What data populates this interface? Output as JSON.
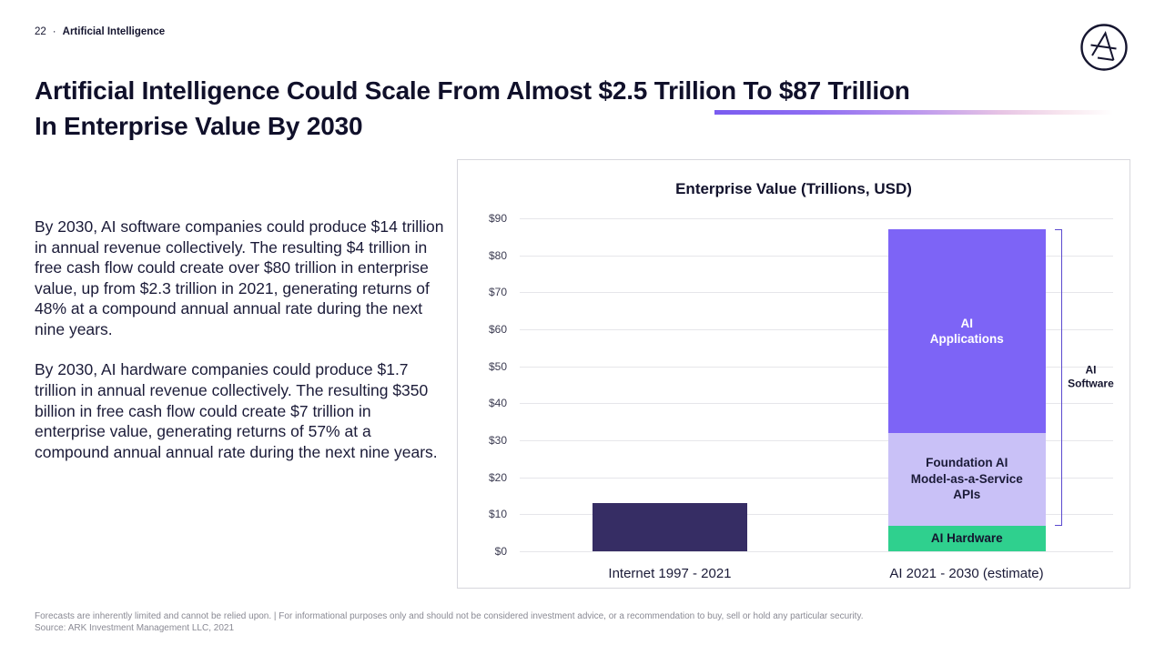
{
  "header": {
    "page_number": "22",
    "separator": "·",
    "section": "Artificial Intelligence"
  },
  "logo": {
    "name": "ark-invest-logo"
  },
  "title": {
    "line1": "Artificial Intelligence Could Scale From Almost $2.5 Trillion To $87 Trillion",
    "line2": "In Enterprise Value By 2030"
  },
  "accent_colors": {
    "gradient_start": "#7a5cf0",
    "gradient_mid": "#e7c4e4",
    "gradient_end": "#ffffff"
  },
  "body": {
    "paragraph1": "By 2030, AI software companies could produce $14 trillion in annual revenue collectively. The resulting $4 trillion in free cash flow could create over $80 trillion in enterprise value, up from $2.3 trillion in 2021, generating returns of 48% at a compound annual annual rate during the next nine years.",
    "paragraph2": "By 2030, AI hardware companies could produce $1.7 trillion in annual revenue collectively. The resulting $350 billion in free cash flow could create $7 trillion in enterprise value, generating returns of 57% at a compound annual annual rate during the next nine years."
  },
  "chart_data": {
    "type": "bar",
    "stacked": true,
    "title": "Enterprise Value (Trillions, USD)",
    "categories": [
      "Internet 1997 - 2021",
      "AI 2021 - 2030 (estimate)"
    ],
    "series": [
      {
        "name": "Internet",
        "values": [
          13,
          0
        ],
        "color": "#362d64",
        "label_lines": [],
        "label_color": "#ffffff"
      },
      {
        "name": "AI Hardware",
        "values": [
          0,
          7
        ],
        "color": "#2fd08e",
        "label_lines": [
          "AI Hardware"
        ],
        "label_color": "#14142e"
      },
      {
        "name": "Foundation AI Model-as-a-Service APIs",
        "values": [
          0,
          25
        ],
        "color": "#c9c1f7",
        "label_lines": [
          "Foundation AI",
          "Model-as-a-Service",
          "APIs"
        ],
        "label_color": "#1b1b38"
      },
      {
        "name": "AI Applications",
        "values": [
          0,
          55
        ],
        "color": "#7d64f6",
        "label_lines": [
          "AI",
          "Applications"
        ],
        "label_color": "#ffffff"
      }
    ],
    "ylim": [
      0,
      90
    ],
    "y_tick_step": 10,
    "y_tick_labels": [
      "$0",
      "$10",
      "$20",
      "$30",
      "$40",
      "$50",
      "$60",
      "$70",
      "$80",
      "$90"
    ],
    "grid": true,
    "legend": false,
    "annotation": {
      "label": "AI Software",
      "label_lines": [
        "AI",
        "Software"
      ],
      "from": 7,
      "to": 87,
      "color": "#5b49cf"
    }
  },
  "footer": {
    "disclaimer": "Forecasts are inherently limited and cannot be relied upon. | For informational purposes only and should not be considered investment advice, or a recommendation to buy, sell or hold any particular security.",
    "source": "Source: ARK Investment Management LLC, 2021"
  }
}
